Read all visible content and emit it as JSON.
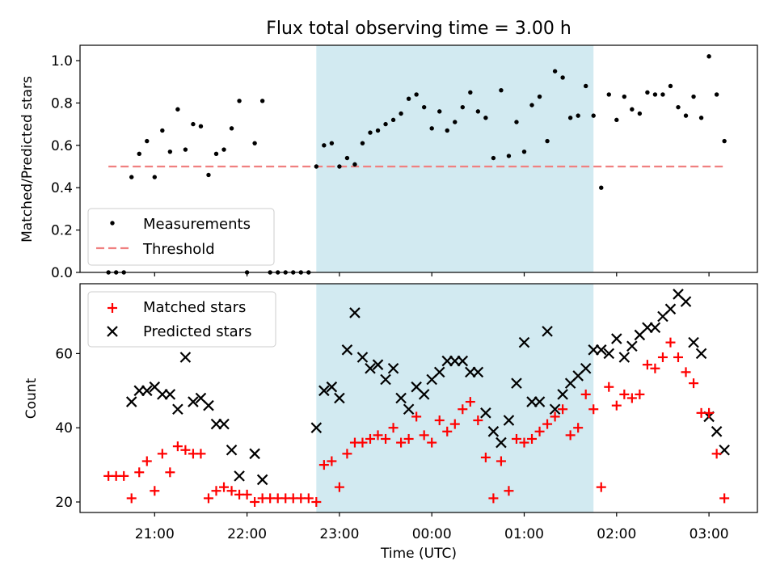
{
  "title": "Flux total observing time = 3.00 h",
  "colors": {
    "shade": "#add8e6",
    "measurement": "#000000",
    "threshold": "#f08080",
    "matched": "#ff0000",
    "predicted": "#000000"
  },
  "chart_data": [
    {
      "type": "scatter",
      "ylabel": "Matched/Predicted stars",
      "ylim": [
        0.0,
        1.07
      ],
      "yticks": [
        0.0,
        0.2,
        0.4,
        0.6,
        0.8,
        1.0
      ],
      "ytick_labels": [
        "0.0",
        "0.2",
        "0.4",
        "0.6",
        "0.8",
        "1.0"
      ],
      "legend_position": "lower-left",
      "shaded_interval": [
        "22:45",
        "01:45"
      ],
      "threshold": {
        "name": "Threshold",
        "value": 0.5,
        "x_start": "20:30",
        "x_end": "03:10"
      },
      "series": [
        {
          "name": "Measurements",
          "marker": "dot",
          "x": [
            "20:30",
            "20:35",
            "20:40",
            "20:45",
            "20:50",
            "20:55",
            "21:00",
            "21:05",
            "21:10",
            "21:15",
            "21:20",
            "21:25",
            "21:30",
            "21:35",
            "21:40",
            "21:45",
            "21:50",
            "21:55",
            "22:00",
            "22:05",
            "22:10",
            "22:15",
            "22:20",
            "22:25",
            "22:30",
            "22:35",
            "22:40",
            "22:45",
            "22:50",
            "22:55",
            "23:00",
            "23:05",
            "23:10",
            "23:15",
            "23:20",
            "23:25",
            "23:30",
            "23:35",
            "23:40",
            "23:45",
            "23:50",
            "23:55",
            "00:00",
            "00:05",
            "00:10",
            "00:15",
            "00:20",
            "00:25",
            "00:30",
            "00:35",
            "00:40",
            "00:45",
            "00:50",
            "00:55",
            "01:00",
            "01:05",
            "01:10",
            "01:15",
            "01:20",
            "01:25",
            "01:30",
            "01:35",
            "01:40",
            "01:45",
            "01:50",
            "01:55",
            "02:00",
            "02:05",
            "02:10",
            "02:15",
            "02:20",
            "02:25",
            "02:30",
            "02:35",
            "02:40",
            "02:45",
            "02:50",
            "02:55",
            "03:00",
            "03:05",
            "03:10"
          ],
          "y": [
            0.0,
            0.0,
            0.0,
            0.45,
            0.56,
            0.62,
            0.45,
            0.67,
            0.57,
            0.77,
            0.58,
            0.7,
            0.69,
            0.46,
            0.56,
            0.58,
            0.68,
            0.81,
            0.0,
            0.61,
            0.81,
            0.0,
            0.0,
            0.0,
            0.0,
            0.0,
            0.0,
            0.5,
            0.6,
            0.61,
            0.5,
            0.54,
            0.51,
            0.61,
            0.66,
            0.67,
            0.7,
            0.72,
            0.75,
            0.82,
            0.84,
            0.78,
            0.68,
            0.76,
            0.67,
            0.71,
            0.78,
            0.85,
            0.76,
            0.73,
            0.54,
            0.86,
            0.55,
            0.71,
            0.57,
            0.79,
            0.83,
            0.62,
            0.95,
            0.92,
            0.73,
            0.74,
            0.88,
            0.74,
            0.4,
            0.84,
            0.72,
            0.83,
            0.77,
            0.75,
            0.85,
            0.84,
            0.84,
            0.88,
            0.78,
            0.74,
            0.83,
            0.73,
            1.02,
            0.84,
            0.62
          ]
        }
      ]
    },
    {
      "type": "scatter",
      "xlabel": "Time (UTC)",
      "ylabel": "Count",
      "ylim": [
        17,
        77
      ],
      "yticks": [
        20,
        40,
        60
      ],
      "ytick_labels": [
        "20",
        "40",
        "60"
      ],
      "xticks": [
        "21:00",
        "22:00",
        "23:00",
        "00:00",
        "01:00",
        "02:00",
        "03:00"
      ],
      "legend_position": "top-left",
      "shaded_interval": [
        "22:45",
        "01:45"
      ],
      "series": [
        {
          "name": "Matched stars",
          "marker": "plus",
          "x": [
            "20:30",
            "20:35",
            "20:40",
            "20:45",
            "20:50",
            "20:55",
            "21:00",
            "21:05",
            "21:10",
            "21:15",
            "21:20",
            "21:25",
            "21:30",
            "21:35",
            "21:40",
            "21:45",
            "21:50",
            "21:55",
            "22:00",
            "22:05",
            "22:10",
            "22:15",
            "22:20",
            "22:25",
            "22:30",
            "22:35",
            "22:40",
            "22:45",
            "22:50",
            "22:55",
            "23:00",
            "23:05",
            "23:10",
            "23:15",
            "23:20",
            "23:25",
            "23:30",
            "23:35",
            "23:40",
            "23:45",
            "23:50",
            "23:55",
            "00:00",
            "00:05",
            "00:10",
            "00:15",
            "00:20",
            "00:25",
            "00:30",
            "00:35",
            "00:40",
            "00:45",
            "00:50",
            "00:55",
            "01:00",
            "01:05",
            "01:10",
            "01:15",
            "01:20",
            "01:25",
            "01:30",
            "01:35",
            "01:40",
            "01:45",
            "01:50",
            "01:55",
            "02:00",
            "02:05",
            "02:10",
            "02:15",
            "02:20",
            "02:25",
            "02:30",
            "02:35",
            "02:40",
            "02:45",
            "02:50",
            "02:55",
            "03:00",
            "03:05",
            "03:10"
          ],
          "y": [
            27,
            27,
            27,
            21,
            28,
            31,
            23,
            33,
            28,
            35,
            34,
            33,
            33,
            21,
            23,
            24,
            23,
            22,
            22,
            20,
            21,
            21,
            21,
            21,
            21,
            21,
            21,
            20,
            30,
            31,
            24,
            33,
            36,
            36,
            37,
            38,
            37,
            40,
            36,
            37,
            43,
            38,
            36,
            42,
            39,
            41,
            45,
            47,
            42,
            32,
            21,
            31,
            23,
            37,
            36,
            37,
            39,
            41,
            43,
            45,
            38,
            40,
            49,
            45,
            24,
            51,
            46,
            49,
            48,
            49,
            57,
            56,
            59,
            63,
            59,
            55,
            52,
            44,
            44,
            33,
            21
          ]
        },
        {
          "name": "Predicted stars",
          "marker": "x",
          "x": [
            "20:45",
            "20:50",
            "20:55",
            "21:00",
            "21:05",
            "21:10",
            "21:15",
            "21:20",
            "21:25",
            "21:30",
            "21:35",
            "21:40",
            "21:45",
            "21:50",
            "21:55",
            "22:05",
            "22:10",
            "22:45",
            "22:50",
            "22:55",
            "23:00",
            "23:05",
            "23:10",
            "23:15",
            "23:20",
            "23:25",
            "23:30",
            "23:35",
            "23:40",
            "23:45",
            "23:50",
            "23:55",
            "00:00",
            "00:05",
            "00:10",
            "00:15",
            "00:20",
            "00:25",
            "00:30",
            "00:35",
            "00:40",
            "00:45",
            "00:50",
            "00:55",
            "01:00",
            "01:05",
            "01:10",
            "01:15",
            "01:20",
            "01:25",
            "01:30",
            "01:35",
            "01:40",
            "01:45",
            "01:50",
            "01:55",
            "02:00",
            "02:05",
            "02:10",
            "02:15",
            "02:20",
            "02:25",
            "02:30",
            "02:35",
            "02:40",
            "02:45",
            "02:50",
            "02:55",
            "03:00",
            "03:05",
            "03:10"
          ],
          "y": [
            47,
            50,
            50,
            51,
            49,
            49,
            45,
            59,
            47,
            48,
            46,
            41,
            41,
            34,
            27,
            33,
            26,
            40,
            50,
            51,
            48,
            61,
            71,
            59,
            56,
            57,
            53,
            56,
            48,
            45,
            51,
            49,
            53,
            55,
            58,
            58,
            58,
            55,
            55,
            44,
            39,
            36,
            42,
            52,
            63,
            47,
            47,
            66,
            45,
            49,
            52,
            54,
            56,
            61,
            61,
            60,
            64,
            59,
            62,
            65,
            67,
            67,
            70,
            72,
            76,
            74,
            63,
            60,
            43,
            39,
            34
          ]
        }
      ]
    }
  ]
}
